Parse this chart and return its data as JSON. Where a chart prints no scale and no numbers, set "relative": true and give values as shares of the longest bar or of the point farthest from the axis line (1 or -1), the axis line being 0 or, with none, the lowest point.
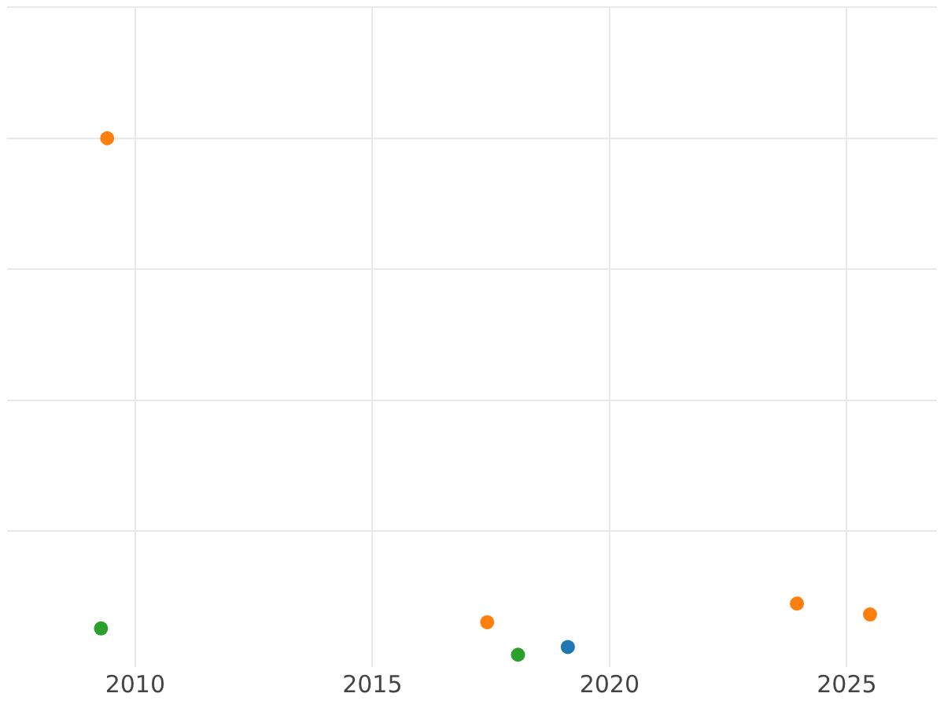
{
  "chart_data": {
    "type": "scatter",
    "relative": true,
    "xlim": [
      2007.3,
      2026.9
    ],
    "xticks": [
      2010,
      2015,
      2020,
      2025
    ],
    "grid": true,
    "marker": "circle",
    "legend": false,
    "series": [
      {
        "color": "#ff7f0e",
        "x": [
          2009.41,
          2017.42,
          2023.95,
          2025.49
        ],
        "values": [
          1,
          0.063,
          0.099,
          0.078
        ]
      },
      {
        "color": "#2ca02c",
        "x": [
          2009.28,
          2018.07
        ],
        "values": [
          0.051,
          0
        ]
      },
      {
        "color": "#1f77b4",
        "x": [
          2019.12
        ],
        "values": [
          0.015
        ]
      }
    ]
  }
}
